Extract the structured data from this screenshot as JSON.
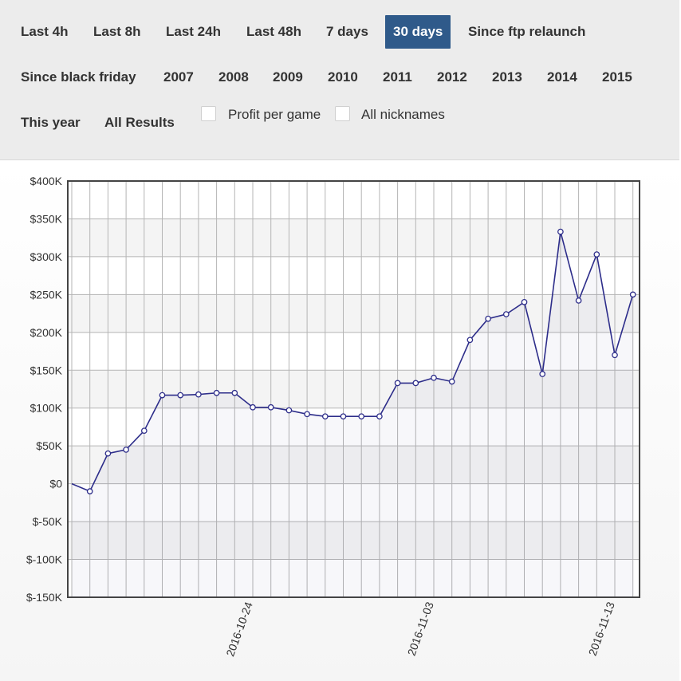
{
  "filters": {
    "row1": [
      {
        "label": "Last 4h",
        "active": false
      },
      {
        "label": "Last 8h",
        "active": false
      },
      {
        "label": "Last 24h",
        "active": false
      },
      {
        "label": "Last 48h",
        "active": false
      },
      {
        "label": "7 days",
        "active": false
      },
      {
        "label": "30 days",
        "active": true
      },
      {
        "label": "Since ftp relaunch",
        "active": false
      }
    ],
    "row2": [
      {
        "label": "Since black friday"
      },
      {
        "label": "2007"
      },
      {
        "label": "2008"
      },
      {
        "label": "2009"
      },
      {
        "label": "2010"
      },
      {
        "label": "2011"
      },
      {
        "label": "2012"
      },
      {
        "label": "2013"
      },
      {
        "label": "2014"
      },
      {
        "label": "2015"
      }
    ],
    "row3": [
      {
        "label": "This year"
      },
      {
        "label": "All Results"
      }
    ],
    "options": [
      {
        "label": "Profit per game",
        "checked": false
      },
      {
        "label": "All nicknames",
        "checked": false
      }
    ]
  },
  "colors": {
    "accent": "#2f5a8a",
    "line": "#2d2d8a"
  },
  "chart_data": {
    "type": "line",
    "title": "",
    "xlabel": "",
    "ylabel": "",
    "ylim": [
      -150000,
      400000
    ],
    "y_ticks": [
      "$-150K",
      "$-100K",
      "$-50K",
      "$0",
      "$50K",
      "$100K",
      "$150K",
      "$200K",
      "$250K",
      "$300K",
      "$350K",
      "$400K"
    ],
    "x_ticks": [
      "2016-10-24",
      "2016-11-03",
      "2016-11-13"
    ],
    "grid": true,
    "series": [
      {
        "values": [
          0,
          -10000,
          40000,
          45000,
          70000,
          117000,
          117000,
          118000,
          120000,
          120000,
          101000,
          101000,
          97000,
          92000,
          89000,
          89000,
          89000,
          89000,
          133000,
          133000,
          140000,
          135000,
          190000,
          218000,
          224000,
          240000,
          145000,
          333000,
          242000,
          303000,
          170000,
          250000
        ]
      }
    ]
  }
}
